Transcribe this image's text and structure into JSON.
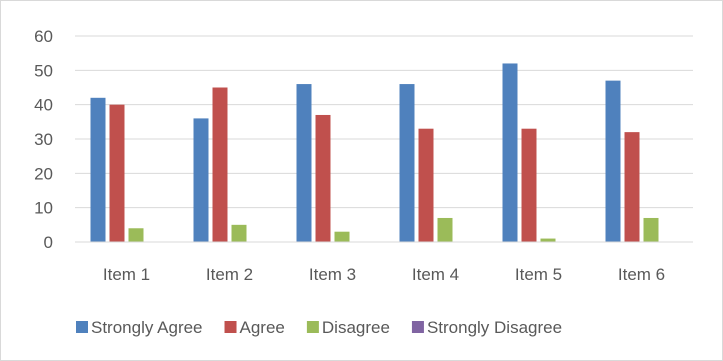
{
  "chart_data": {
    "type": "bar",
    "title": "",
    "xlabel": "",
    "ylabel": "",
    "categories": [
      "Item 1",
      "Item 2",
      "Item 3",
      "Item 4",
      "Item 5",
      "Item 6"
    ],
    "series": [
      {
        "name": "Strongly Agree",
        "color": "#4f81bd",
        "values": [
          42,
          36,
          46,
          46,
          52,
          47
        ]
      },
      {
        "name": "Agree",
        "color": "#c0504d",
        "values": [
          40,
          45,
          37,
          33,
          33,
          32
        ]
      },
      {
        "name": "Disagree",
        "color": "#9bbb59",
        "values": [
          4,
          5,
          3,
          7,
          1,
          7
        ]
      },
      {
        "name": "Strongly Disagree",
        "color": "#8064a2",
        "values": [
          0,
          0,
          0,
          0,
          0,
          0
        ]
      }
    ],
    "ylim": [
      0,
      60
    ],
    "yticks": [
      0,
      10,
      20,
      30,
      40,
      50,
      60
    ],
    "grid": true,
    "legend": "bottom"
  }
}
